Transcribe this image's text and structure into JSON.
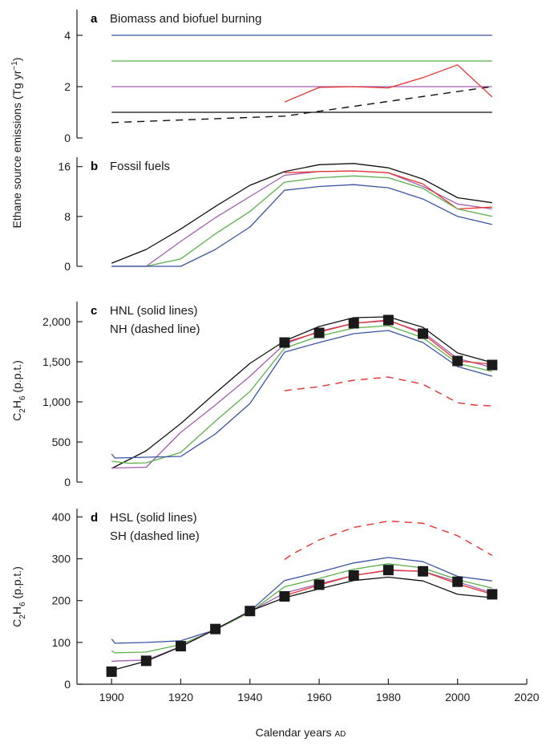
{
  "colors": {
    "blue": "#3a54a4",
    "green": "#5bb04a",
    "purple": "#a45db0",
    "red": "#e6322d",
    "black": "#111111",
    "marker": "#1a1a1a"
  },
  "x_axis": {
    "label": "Calendar years",
    "label_suffix": "AD",
    "ticks": [
      1900,
      1920,
      1940,
      1960,
      1980,
      2000,
      2020
    ],
    "tick_labels": [
      "1900",
      "1920",
      "1940",
      "1960",
      "1980",
      "2000",
      "2020"
    ],
    "xlim": [
      1890,
      2020
    ]
  },
  "y_label_top": {
    "main": "Ethane source emissions (Tg yr",
    "sup": "−1",
    "close": ")"
  },
  "y_label_c2h6": {
    "c": "C",
    "sub1": "2",
    "h": "H",
    "sub2": "6",
    "units": " (p.p.t.)"
  },
  "chart_data": [
    {
      "id": "a",
      "type": "line",
      "panel_label": "a",
      "title": "Biomass and biofuel burning",
      "ylim": [
        0,
        5
      ],
      "yticks": [
        0,
        2,
        4
      ],
      "ytick_labels": [
        "0",
        "2",
        "4"
      ],
      "series": [
        {
          "color": "blue",
          "dash": false,
          "x": [
            1900,
            2010
          ],
          "y": [
            4,
            4
          ]
        },
        {
          "color": "green",
          "dash": false,
          "x": [
            1900,
            2010
          ],
          "y": [
            3,
            3
          ]
        },
        {
          "color": "purple",
          "dash": false,
          "x": [
            1900,
            2010
          ],
          "y": [
            2,
            2
          ]
        },
        {
          "color": "black",
          "dash": false,
          "x": [
            1900,
            2010
          ],
          "y": [
            1,
            1
          ]
        },
        {
          "color": "black",
          "dash": true,
          "x": [
            1900,
            1950,
            2010
          ],
          "y": [
            0.6,
            0.85,
            2.0
          ]
        },
        {
          "color": "red",
          "dash": false,
          "x": [
            1950,
            1960,
            1970,
            1980,
            1990,
            2000,
            2010
          ],
          "y": [
            1.4,
            1.97,
            2.0,
            1.95,
            2.35,
            2.85,
            1.6
          ]
        }
      ]
    },
    {
      "id": "b",
      "type": "line",
      "panel_label": "b",
      "title": "Fossil fuels",
      "ylim": [
        0,
        17.5
      ],
      "yticks": [
        0,
        8,
        16
      ],
      "ytick_labels": [
        "0",
        "8",
        "16"
      ],
      "series": [
        {
          "color": "black",
          "dash": false,
          "x": [
            1900,
            1910,
            1920,
            1930,
            1940,
            1950,
            1960,
            1970,
            1980,
            1990,
            2000,
            2010
          ],
          "y": [
            0.5,
            2.7,
            6.0,
            9.6,
            13.0,
            15.2,
            16.3,
            16.5,
            15.8,
            14.0,
            11.0,
            10.2
          ]
        },
        {
          "color": "purple",
          "dash": false,
          "x": [
            1900,
            1910,
            1920,
            1930,
            1940,
            1950,
            1960,
            1970,
            1980,
            1990,
            2000,
            2010
          ],
          "y": [
            0.0,
            0.0,
            4.0,
            7.8,
            11.2,
            14.6,
            15.2,
            15.3,
            15.0,
            12.8,
            10.0,
            9.2
          ]
        },
        {
          "color": "red",
          "dash": false,
          "x": [
            1950,
            1960,
            1970,
            1980,
            1990,
            2000,
            2010
          ],
          "y": [
            15.0,
            15.2,
            15.3,
            15.0,
            13.2,
            9.2,
            9.5
          ]
        },
        {
          "color": "green",
          "dash": false,
          "x": [
            1900,
            1910,
            1920,
            1930,
            1940,
            1950,
            1960,
            1970,
            1980,
            1990,
            2000,
            2010
          ],
          "y": [
            0.0,
            0.0,
            1.2,
            5.2,
            8.8,
            13.5,
            14.2,
            14.5,
            14.2,
            12.5,
            9.2,
            8.0
          ]
        },
        {
          "color": "blue",
          "dash": false,
          "x": [
            1900,
            1910,
            1920,
            1930,
            1940,
            1950,
            1960,
            1970,
            1980,
            1990,
            2000,
            2010
          ],
          "y": [
            0.0,
            0.0,
            0.0,
            2.7,
            6.3,
            12.2,
            12.8,
            13.1,
            12.6,
            10.8,
            8.0,
            6.7
          ]
        }
      ]
    },
    {
      "id": "c",
      "type": "line",
      "panel_label": "c",
      "annotations": [
        "HNL (solid lines)",
        "NH (dashed line)"
      ],
      "ylim": [
        0,
        2250
      ],
      "yticks": [
        0,
        500,
        1000,
        1500,
        2000
      ],
      "ytick_labels": [
        "0",
        "500",
        "1,000",
        "1,500",
        "2,000"
      ],
      "series": [
        {
          "color": "black",
          "dash": false,
          "x": [
            1900,
            1910,
            1920,
            1930,
            1940,
            1950,
            1960,
            1970,
            1980,
            1990,
            2000,
            2010
          ],
          "y": [
            170,
            390,
            730,
            1110,
            1480,
            1760,
            1940,
            2050,
            2060,
            1930,
            1610,
            1490
          ]
        },
        {
          "color": "purple",
          "dash": false,
          "x": [
            1900,
            1910,
            1920,
            1930,
            1940,
            1950,
            1960,
            1970,
            1980,
            1990,
            2000,
            2010
          ],
          "y": [
            175,
            185,
            620,
            960,
            1320,
            1720,
            1880,
            1980,
            2010,
            1870,
            1540,
            1430
          ]
        },
        {
          "color": "green",
          "dash": false,
          "x": [
            1900,
            1905,
            1910,
            1920,
            1930,
            1940,
            1950,
            1960,
            1970,
            1980,
            1990,
            2000,
            2010
          ],
          "y": [
            260,
            235,
            240,
            370,
            760,
            1130,
            1670,
            1820,
            1920,
            1950,
            1800,
            1480,
            1380
          ]
        },
        {
          "color": "blue",
          "dash": false,
          "x": [
            1900,
            1901,
            1910,
            1920,
            1930,
            1940,
            1950,
            1960,
            1970,
            1980,
            1990,
            2000,
            2010
          ],
          "y": [
            350,
            300,
            310,
            320,
            600,
            980,
            1620,
            1740,
            1850,
            1890,
            1740,
            1440,
            1320
          ]
        },
        {
          "color": "red",
          "dash": false,
          "x": [
            1950,
            1960,
            1970,
            1980,
            1990,
            2000,
            2010
          ],
          "y": [
            1740,
            1870,
            1980,
            2020,
            1850,
            1510,
            1470
          ]
        },
        {
          "color": "red",
          "dash": true,
          "x": [
            1950,
            1960,
            1970,
            1980,
            1990,
            2000,
            2005,
            2010
          ],
          "y": [
            1140,
            1190,
            1270,
            1310,
            1220,
            990,
            960,
            950
          ]
        },
        {
          "type": "markers",
          "color": "marker",
          "x": [
            1950,
            1960,
            1970,
            1980,
            1990,
            2000,
            2010
          ],
          "y": [
            1740,
            1860,
            1980,
            2020,
            1850,
            1510,
            1460
          ]
        }
      ]
    },
    {
      "id": "d",
      "type": "line",
      "panel_label": "d",
      "annotations": [
        "HSL (solid lines)",
        "SH (dashed line)"
      ],
      "ylim": [
        0,
        420
      ],
      "yticks": [
        0,
        100,
        200,
        300,
        400
      ],
      "ytick_labels": [
        "0",
        "100",
        "200",
        "300",
        "400"
      ],
      "series": [
        {
          "color": "blue",
          "dash": false,
          "x": [
            1900,
            1901,
            1910,
            1920,
            1930,
            1940,
            1950,
            1960,
            1970,
            1980,
            1990,
            2000,
            2010
          ],
          "y": [
            108,
            98,
            100,
            104,
            130,
            175,
            248,
            268,
            290,
            303,
            293,
            258,
            247
          ]
        },
        {
          "color": "green",
          "dash": false,
          "x": [
            1900,
            1901,
            1910,
            1920,
            1930,
            1940,
            1950,
            1960,
            1970,
            1980,
            1990,
            2000,
            2010
          ],
          "y": [
            80,
            75,
            77,
            95,
            130,
            172,
            233,
            253,
            275,
            288,
            278,
            250,
            230
          ]
        },
        {
          "color": "purple",
          "dash": false,
          "x": [
            1900,
            1910,
            1920,
            1930,
            1940,
            1950,
            1960,
            1970,
            1980,
            1990,
            2000,
            2010
          ],
          "y": [
            55,
            58,
            90,
            132,
            174,
            218,
            240,
            260,
            272,
            270,
            245,
            218
          ]
        },
        {
          "color": "black",
          "dash": false,
          "x": [
            1900,
            1910,
            1920,
            1930,
            1940,
            1950,
            1960,
            1970,
            1980,
            1990,
            2000,
            2010
          ],
          "y": [
            33,
            55,
            90,
            131,
            175,
            207,
            228,
            248,
            256,
            247,
            215,
            207
          ]
        },
        {
          "color": "red",
          "dash": false,
          "x": [
            1950,
            1960,
            1970,
            1980,
            1990,
            2000,
            2010
          ],
          "y": [
            212,
            237,
            260,
            273,
            270,
            240,
            215
          ]
        },
        {
          "color": "red",
          "dash": true,
          "x": [
            1950,
            1952,
            1960,
            1970,
            1980,
            1990,
            2000,
            2010
          ],
          "y": [
            298,
            310,
            345,
            375,
            390,
            385,
            355,
            308
          ]
        },
        {
          "type": "markers",
          "color": "marker",
          "x": [
            1900,
            1910,
            1920,
            1930,
            1940,
            1950,
            1960,
            1970,
            1980,
            1990,
            2000,
            2010
          ],
          "y": [
            30,
            56,
            91,
            132,
            175,
            210,
            238,
            260,
            273,
            270,
            245,
            215
          ]
        }
      ]
    }
  ]
}
